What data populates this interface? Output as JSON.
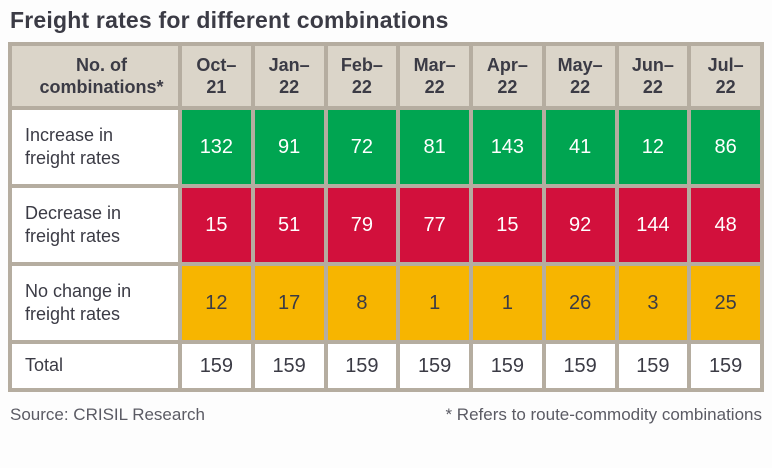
{
  "title": "Freight rates for different combinations",
  "colors": {
    "border": "#B5ADA0",
    "header_bg": "#DBD5C9",
    "increase_green": "#00A551",
    "decrease_red": "#D2103C",
    "no_change_amber": "#F7B500",
    "dark_text": "#3B3B45",
    "white_text": "#FFFFFF",
    "footer_text": "#5B5B64"
  },
  "table": {
    "corner_header": "No. of\ncombinations*",
    "column_headers": [
      "Oct–\n21",
      "Jan–\n22",
      "Feb–\n22",
      "Mar–\n22",
      "Apr–\n22",
      "May–\n22",
      "Jun–\n22",
      "Jul–\n22"
    ],
    "rows": [
      {
        "label": "Increase in\nfreight rates",
        "values": [
          132,
          91,
          72,
          81,
          143,
          41,
          12,
          86
        ],
        "bg": "#00A551",
        "fg": "#FFFFFF",
        "total": false
      },
      {
        "label": "Decrease in\nfreight rates",
        "values": [
          15,
          51,
          79,
          77,
          15,
          92,
          144,
          48
        ],
        "bg": "#D2103C",
        "fg": "#FFFFFF",
        "total": false
      },
      {
        "label": "No change in\nfreight rates",
        "values": [
          12,
          17,
          8,
          1,
          1,
          26,
          3,
          25
        ],
        "bg": "#F7B500",
        "fg": "#3B3B45",
        "total": false
      },
      {
        "label": "Total",
        "values": [
          159,
          159,
          159,
          159,
          159,
          159,
          159,
          159
        ],
        "bg": "#FFFFFF",
        "fg": "#3B3B45",
        "total": true
      }
    ]
  },
  "footer": {
    "source": "Source: CRISIL Research",
    "note": "* Refers to route-commodity combinations"
  },
  "chart_data": {
    "type": "table",
    "title": "Freight rates for different combinations",
    "row_axis_label": "No. of combinations*",
    "categories": [
      "Oct–21",
      "Jan–22",
      "Feb–22",
      "Mar–22",
      "Apr–22",
      "May–22",
      "Jun–22",
      "Jul–22"
    ],
    "series": [
      {
        "name": "Increase in freight rates",
        "values": [
          132,
          91,
          72,
          81,
          143,
          41,
          12,
          86
        ]
      },
      {
        "name": "Decrease in freight rates",
        "values": [
          15,
          51,
          79,
          77,
          15,
          92,
          144,
          48
        ]
      },
      {
        "name": "No change in freight rates",
        "values": [
          12,
          17,
          8,
          1,
          1,
          26,
          3,
          25
        ]
      },
      {
        "name": "Total",
        "values": [
          159,
          159,
          159,
          159,
          159,
          159,
          159,
          159
        ]
      }
    ],
    "source": "Source: CRISIL Research",
    "footnote": "* Refers to route-commodity combinations"
  }
}
